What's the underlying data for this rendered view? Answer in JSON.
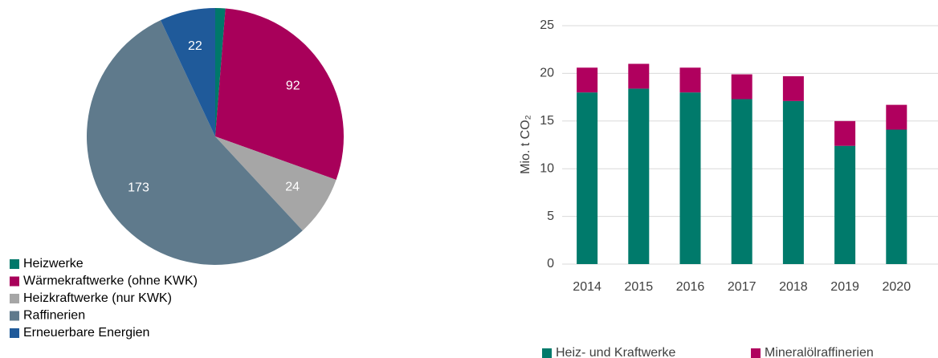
{
  "chart_data": [
    {
      "type": "pie",
      "categories": [
        "Heizwerke",
        "Wärmekraftwerke (ohne KWK)",
        "Heizkraftwerke (nur KWK)",
        "Raffinerien",
        "Erneuerbare Energien"
      ],
      "values": [
        4,
        92,
        24,
        173,
        22
      ],
      "colors": [
        "#00786a",
        "#a8005a",
        "#a6a6a6",
        "#5f7a8c",
        "#1f5a9a"
      ]
    },
    {
      "type": "bar",
      "stacked": true,
      "categories": [
        "2014",
        "2015",
        "2016",
        "2017",
        "2018",
        "2019",
        "2020"
      ],
      "series": [
        {
          "name": "Heiz- und Kraftwerke",
          "color": "#007a6b",
          "values": [
            18.0,
            18.4,
            18.0,
            17.3,
            17.1,
            12.4,
            14.1
          ]
        },
        {
          "name": "Mineralölraffinerien",
          "color": "#b0005e",
          "values": [
            2.6,
            2.6,
            2.6,
            2.6,
            2.6,
            2.6,
            2.6
          ]
        }
      ],
      "ylabel": "Mio. t CO₂",
      "ylim": [
        0,
        25
      ],
      "yticks": [
        0,
        5,
        10,
        15,
        20,
        25
      ],
      "grid": true
    }
  ]
}
